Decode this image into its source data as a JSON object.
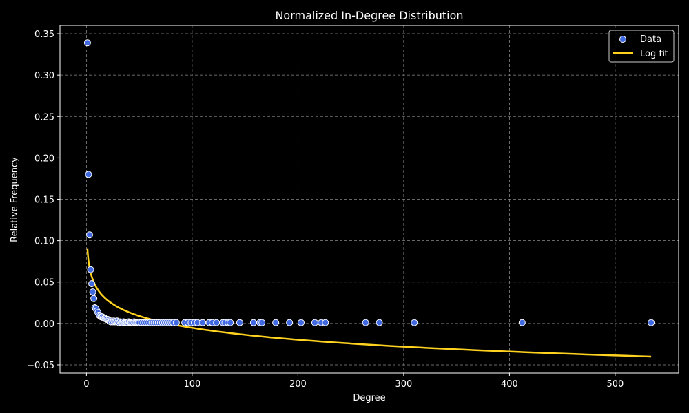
{
  "chart_data": {
    "type": "scatter",
    "title": "Normalized In-Degree Distribution",
    "xlabel": "Degree",
    "ylabel": "Relative Frequency",
    "xlim": [
      -25,
      560
    ],
    "ylim": [
      -0.06,
      0.36
    ],
    "xticks": [
      0,
      100,
      200,
      300,
      400,
      500
    ],
    "xtick_labels": [
      "0",
      "100",
      "200",
      "300",
      "400",
      "500"
    ],
    "yticks": [
      -0.05,
      0.0,
      0.05,
      0.1,
      0.15,
      0.2,
      0.25,
      0.3,
      0.35
    ],
    "ytick_labels": [
      "−0.05",
      "0.00",
      "0.05",
      "0.10",
      "0.15",
      "0.20",
      "0.25",
      "0.30",
      "0.35"
    ],
    "grid": true,
    "legend_position": "top-right",
    "colors": {
      "background": "#000000",
      "grid": "#8a8a8a",
      "axes": "#ffffff",
      "points": "#4169e1",
      "point_edge": "#ffffff",
      "fit_line": "#ffd21f"
    },
    "series": [
      {
        "name": "Data",
        "kind": "scatter",
        "x": [
          1,
          2,
          3,
          4,
          5,
          6,
          7,
          8,
          9,
          10,
          11,
          12,
          13,
          14,
          15,
          16,
          17,
          18,
          19,
          20,
          21,
          22,
          23,
          24,
          25,
          26,
          27,
          28,
          29,
          30,
          31,
          32,
          33,
          34,
          35,
          36,
          37,
          38,
          39,
          40,
          41,
          42,
          43,
          44,
          45,
          46,
          47,
          48,
          49,
          50,
          52,
          54,
          56,
          58,
          60,
          62,
          64,
          66,
          68,
          70,
          72,
          74,
          76,
          78,
          80,
          82,
          85,
          93,
          96,
          99,
          102,
          105,
          110,
          116,
          119,
          123,
          129,
          131,
          134,
          136,
          145,
          158,
          164,
          166,
          179,
          192,
          203,
          216,
          222,
          226,
          264,
          277,
          310,
          412,
          534
        ],
        "y": [
          0.339,
          0.18,
          0.107,
          0.065,
          0.048,
          0.038,
          0.03,
          0.019,
          0.018,
          0.015,
          0.013,
          0.01,
          0.009,
          0.008,
          0.008,
          0.007,
          0.006,
          0.006,
          0.005,
          0.005,
          0.004,
          0.003,
          0.002,
          0.003,
          0.002,
          0.003,
          0.002,
          0.002,
          0.003,
          0.002,
          0.001,
          0.002,
          0.001,
          0.001,
          0.002,
          0.001,
          0.001,
          0.001,
          0.001,
          0.002,
          0.001,
          0.001,
          0.001,
          0.001,
          0.002,
          0.001,
          0.001,
          0.001,
          0.001,
          0.001,
          0.001,
          0.001,
          0.001,
          0.001,
          0.001,
          0.001,
          0.001,
          0.001,
          0.001,
          0.001,
          0.001,
          0.001,
          0.001,
          0.001,
          0.001,
          0.001,
          0.001,
          0.001,
          0.001,
          0.001,
          0.001,
          0.001,
          0.001,
          0.001,
          0.001,
          0.001,
          0.001,
          0.001,
          0.001,
          0.001,
          0.001,
          0.001,
          0.001,
          0.001,
          0.001,
          0.001,
          0.001,
          0.001,
          0.001,
          0.001,
          0.001,
          0.001,
          0.001,
          0.001,
          0.001
        ]
      },
      {
        "name": "Log fit",
        "kind": "line",
        "model": "a + b*ln(x)",
        "a": 0.09,
        "b": -0.0207,
        "x_range": [
          1,
          534
        ]
      }
    ]
  }
}
